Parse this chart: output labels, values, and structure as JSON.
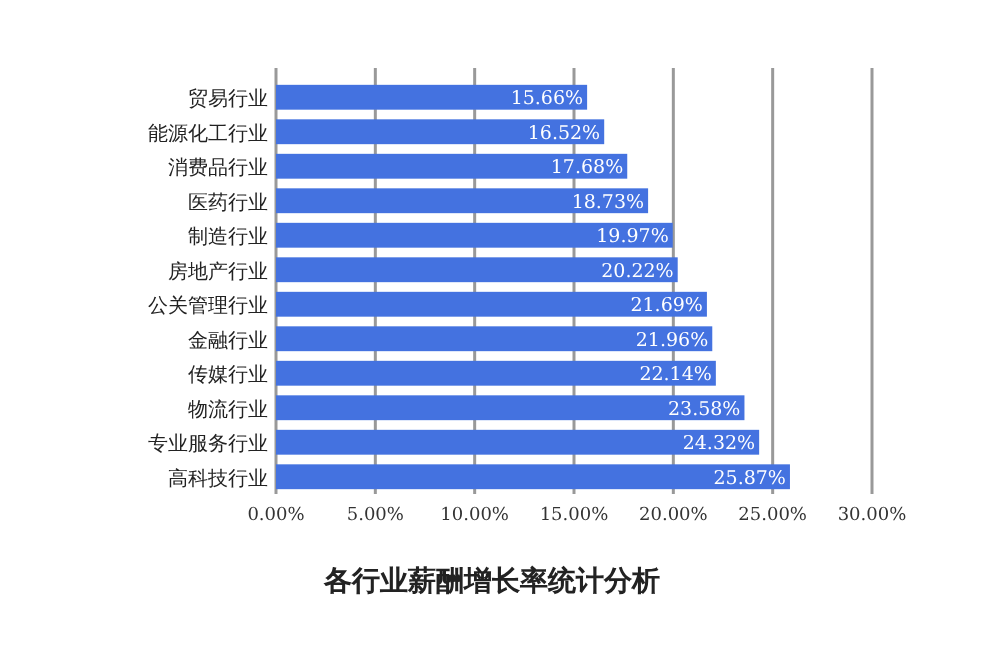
{
  "chart_data": {
    "type": "bar",
    "orientation": "horizontal",
    "title": "各行业薪酬增长率统计分析",
    "categories": [
      "贸易行业",
      "能源化工行业",
      "消费品行业",
      "医药行业",
      "制造行业",
      "房地产行业",
      "公关管理行业",
      "金融行业",
      "传媒行业",
      "物流行业",
      "专业服务行业",
      "高科技行业"
    ],
    "values": [
      15.66,
      16.52,
      17.68,
      18.73,
      19.97,
      20.22,
      21.69,
      21.96,
      22.14,
      23.58,
      24.32,
      25.87
    ],
    "value_labels": [
      "15.66%",
      "16.52%",
      "17.68%",
      "18.73%",
      "19.97%",
      "20.22%",
      "21.69%",
      "21.96%",
      "22.14%",
      "23.58%",
      "24.32%",
      "25.87%"
    ],
    "color": "#4472e0",
    "xlim": [
      0,
      30
    ],
    "xticks": [
      {
        "value": 0,
        "label": "0.00%"
      },
      {
        "value": 5,
        "label": "5.00%"
      },
      {
        "value": 10,
        "label": "10.00%"
      },
      {
        "value": 15,
        "label": "15.00%"
      },
      {
        "value": 20,
        "label": "20.00%"
      },
      {
        "value": 25,
        "label": "25.00%"
      },
      {
        "value": 30,
        "label": "30.00%"
      }
    ],
    "grid": "x"
  }
}
